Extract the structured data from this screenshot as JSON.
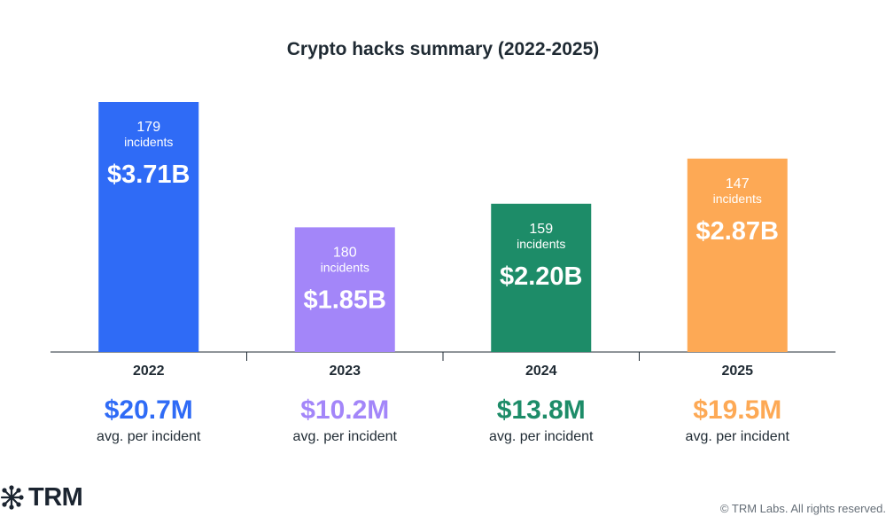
{
  "title": "Crypto hacks summary (2022-2025)",
  "chart_data": {
    "type": "bar",
    "title": "Crypto hacks summary (2022-2025)",
    "categories": [
      "2022",
      "2023",
      "2024",
      "2025"
    ],
    "values": [
      3.71,
      1.85,
      2.2,
      2.87
    ],
    "value_labels": [
      "$3.71B",
      "$1.85B",
      "$2.20B",
      "$2.87B"
    ],
    "incidents": [
      "179",
      "180",
      "159",
      "147"
    ],
    "incidents_label": "incidents",
    "colors": [
      "#2f6bf6",
      "#a386f9",
      "#1d8c68",
      "#fda955"
    ],
    "ylim": [
      0,
      3.71
    ],
    "grid": false,
    "legend": "none",
    "avg_per_incident": [
      "$20.7M",
      "$10.2M",
      "$13.8M",
      "$19.5M"
    ],
    "avg_label": "avg. per incident"
  },
  "branding": {
    "logo_text": "TRM",
    "logo_icon": "network-star-icon",
    "copyright": "© TRM Labs. All rights reserved."
  }
}
